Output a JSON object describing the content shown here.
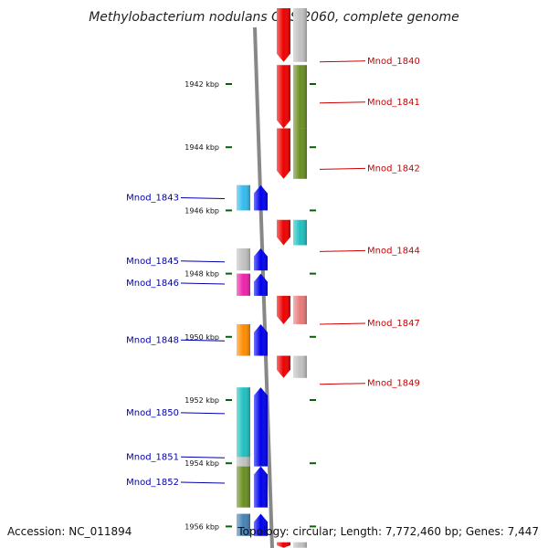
{
  "title": "Methylobacterium nodulans ORS 2060, complete genome",
  "footer": {
    "accession": "Accession: NC_011894",
    "summary": "Topology: circular; Length: 7,772,460 bp; Genes: 7,447"
  },
  "ticks": [
    {
      "label": "1942 kbp",
      "kbp": 1942
    },
    {
      "label": "1944 kbp",
      "kbp": 1944
    },
    {
      "label": "1946 kbp",
      "kbp": 1946
    },
    {
      "label": "1948 kbp",
      "kbp": 1948
    },
    {
      "label": "1950 kbp",
      "kbp": 1950
    },
    {
      "label": "1952 kbp",
      "kbp": 1952
    },
    {
      "label": "1954 kbp",
      "kbp": 1954
    },
    {
      "label": "1956 kbp",
      "kbp": 1956
    }
  ],
  "genes": [
    {
      "id": "Mnod_1840",
      "strand": "+",
      "start_kbp": 1939.6,
      "end_kbp": 1941.3,
      "cog_color": "#c0c0c0",
      "label_kbp": 1941.3
    },
    {
      "id": "Mnod_1841",
      "strand": "+",
      "start_kbp": 1941.4,
      "end_kbp": 1943.4,
      "cog_color": "#6b8e23",
      "label_kbp": 1942.6
    },
    {
      "id": "Mnod_1842",
      "strand": "+",
      "start_kbp": 1943.4,
      "end_kbp": 1945.0,
      "cog_color": "#6b8e23",
      "label_kbp": 1944.7
    },
    {
      "id": "Mnod_1843",
      "strand": "-",
      "start_kbp": 1945.2,
      "end_kbp": 1946.0,
      "cog_color": "#33bbee",
      "label_kbp": 1945.6
    },
    {
      "id": "Mnod_1844",
      "strand": "+",
      "start_kbp": 1946.3,
      "end_kbp": 1947.1,
      "cog_color": "#20c0c0",
      "label_kbp": 1947.3
    },
    {
      "id": "Mnod_1845",
      "strand": "-",
      "start_kbp": 1947.2,
      "end_kbp": 1947.9,
      "cog_color": "#c0c0c0",
      "label_kbp": 1947.6
    },
    {
      "id": "Mnod_1846",
      "strand": "-",
      "start_kbp": 1948.0,
      "end_kbp": 1948.7,
      "cog_color": "#ee22aa",
      "label_kbp": 1948.3
    },
    {
      "id": "Mnod_1847",
      "strand": "+",
      "start_kbp": 1948.7,
      "end_kbp": 1949.6,
      "cog_color": "#e87a7a",
      "label_kbp": 1949.6
    },
    {
      "id": "Mnod_1848",
      "strand": "-",
      "start_kbp": 1949.6,
      "end_kbp": 1950.6,
      "cog_color": "#ff8c00",
      "label_kbp": 1950.1
    },
    {
      "id": "Mnod_1849",
      "strand": "+",
      "start_kbp": 1950.6,
      "end_kbp": 1951.3,
      "cog_color": "#c0c0c0",
      "label_kbp": 1951.5
    },
    {
      "id": "Mnod_1850",
      "strand": "-",
      "start_kbp": 1951.6,
      "end_kbp": 1954.0,
      "cog_color": "#20c0c0",
      "label_kbp": 1952.4
    },
    {
      "id": "Mnod_1851",
      "strand": "-",
      "start_kbp": 1953.8,
      "end_kbp": 1954.1,
      "cog_color": "#c0c0c0",
      "label_kbp": 1953.8
    },
    {
      "id": "Mnod_1852",
      "strand": "-",
      "start_kbp": 1954.1,
      "end_kbp": 1955.4,
      "cog_color": "#6b8e23",
      "label_kbp": 1954.6
    },
    {
      "id": "",
      "strand": "-",
      "start_kbp": 1955.6,
      "end_kbp": 1956.3,
      "cog_color": "#4682b4",
      "label_kbp": null
    },
    {
      "id": "",
      "strand": "+",
      "start_kbp": 1956.5,
      "end_kbp": 1956.5,
      "cog_color": "#c0c0c0",
      "label_kbp": null
    }
  ],
  "colors": {
    "forward_strand": "#ee0000",
    "reverse_strand": "#0000ee",
    "backbone": "#888888",
    "tick": "#006600",
    "left_label": "#0000aa",
    "right_label": "#cc0000"
  }
}
